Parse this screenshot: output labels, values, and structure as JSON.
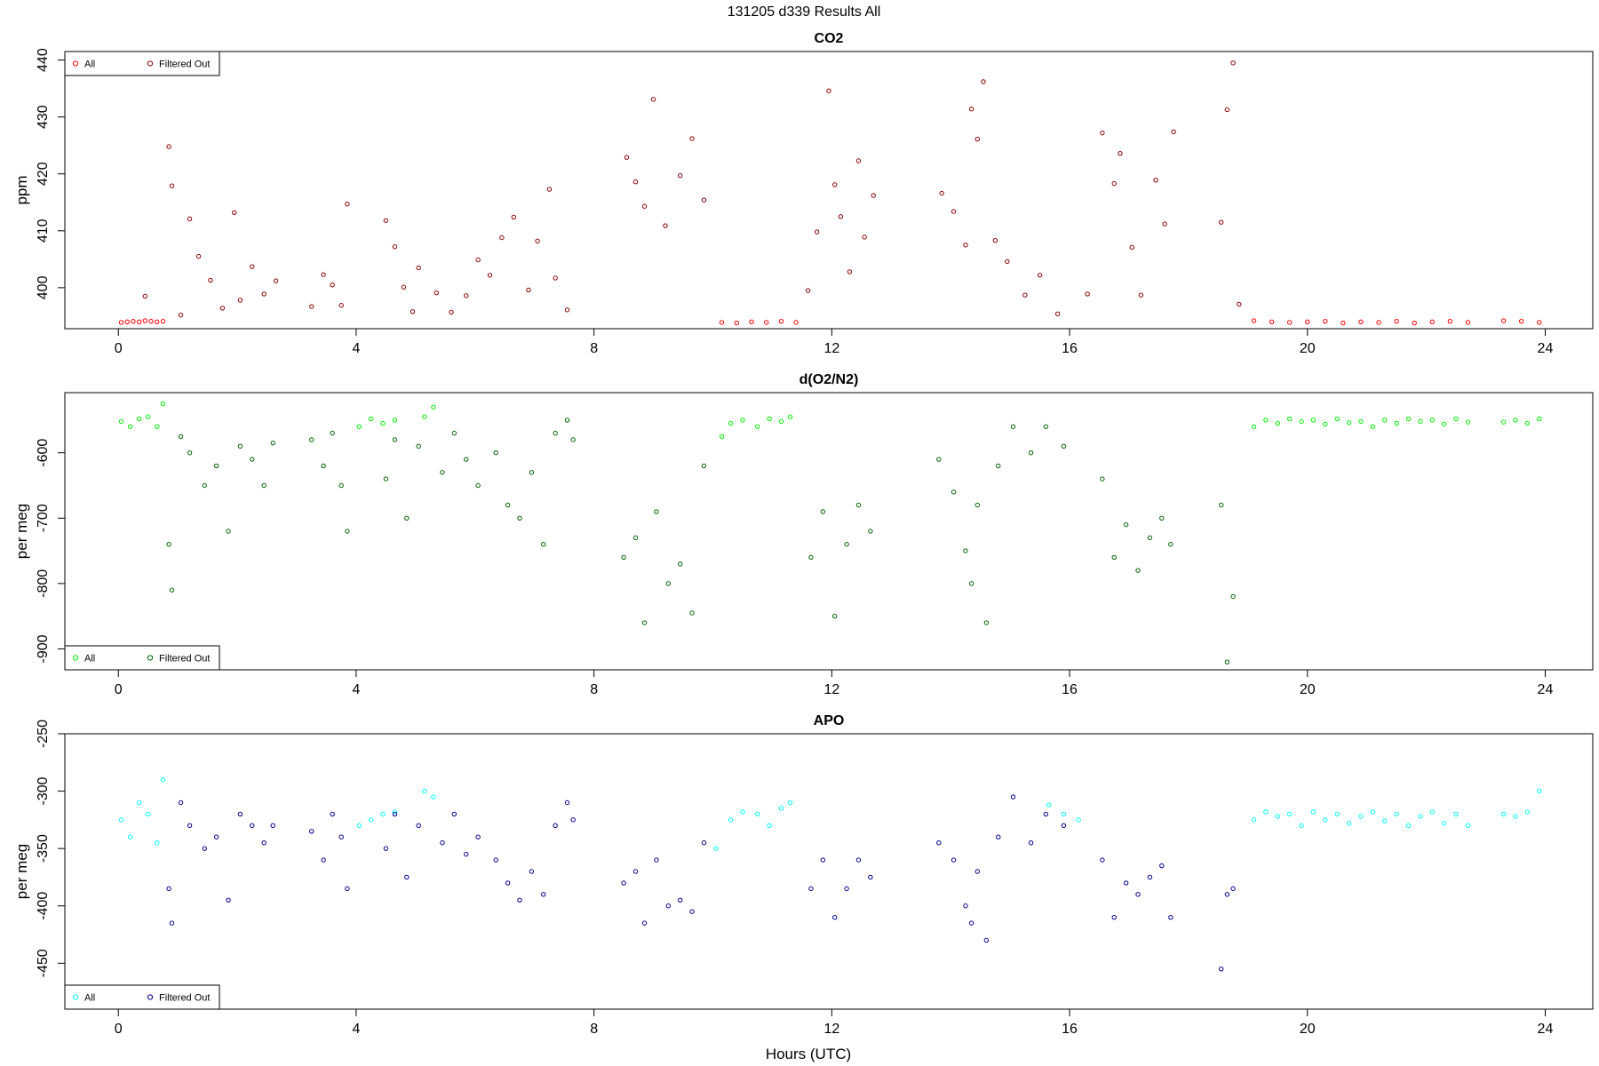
{
  "figure": {
    "title": "131205   d339   Results All",
    "xlabel": "Hours (UTC)"
  },
  "chart_data": [
    {
      "type": "scatter",
      "title": "CO2",
      "xlabel": "",
      "ylabel": "ppm",
      "xlim": [
        -0.9,
        24.8
      ],
      "ylim": [
        392.8,
        441.5
      ],
      "y_reversed": false,
      "xticks": [
        0,
        4,
        8,
        12,
        16,
        20,
        24
      ],
      "yticks": [
        400,
        410,
        420,
        430,
        440
      ],
      "legend": {
        "position": "top-left",
        "entries": [
          "All",
          "Filtered Out"
        ]
      },
      "colors": {
        "All": "#ff0000",
        "Filtered Out": "#8b0000"
      },
      "series": [
        {
          "name": "All",
          "x": [
            0.05,
            0.15,
            0.25,
            0.35,
            0.45,
            0.55,
            0.65,
            0.75,
            10.15,
            10.4,
            10.65,
            10.9,
            11.15,
            11.4,
            19.1,
            19.4,
            19.7,
            20,
            20.3,
            20.6,
            20.9,
            21.2,
            21.5,
            21.8,
            22.1,
            22.4,
            22.7,
            23.3,
            23.6,
            23.9
          ],
          "y": [
            393.9,
            394.0,
            394.1,
            394.0,
            394.2,
            394.1,
            394.0,
            394.1,
            393.9,
            393.8,
            394.0,
            393.9,
            394.1,
            393.9,
            394.2,
            394.0,
            393.9,
            394.0,
            394.1,
            393.8,
            394.0,
            393.9,
            394.1,
            393.8,
            394.0,
            394.1,
            393.9,
            394.2,
            394.1,
            393.9
          ]
        },
        {
          "name": "Filtered Out",
          "x": [
            0.45,
            0.85,
            0.9,
            1.05,
            1.2,
            1.35,
            1.55,
            1.75,
            1.95,
            2.05,
            2.25,
            2.45,
            2.65,
            3.25,
            3.45,
            3.6,
            3.75,
            3.85,
            4.5,
            4.65,
            4.8,
            4.95,
            5.05,
            5.35,
            5.6,
            5.85,
            6.05,
            6.25,
            6.45,
            6.65,
            6.9,
            7.05,
            7.25,
            7.35,
            7.55,
            8.55,
            8.7,
            8.85,
            9.0,
            9.2,
            9.45,
            9.65,
            9.85,
            11.6,
            11.75,
            11.95,
            12.05,
            12.15,
            12.3,
            12.45,
            12.55,
            12.7,
            13.85,
            14.05,
            14.25,
            14.35,
            14.45,
            14.55,
            14.75,
            14.95,
            15.25,
            15.5,
            15.8,
            16.3,
            16.55,
            16.75,
            16.85,
            17.05,
            17.2,
            17.45,
            17.6,
            17.75,
            18.55,
            18.65,
            18.75,
            18.85
          ],
          "y": [
            398.5,
            424.8,
            417.9,
            395.2,
            412.1,
            405.5,
            401.3,
            396.4,
            413.2,
            397.8,
            403.7,
            398.9,
            401.2,
            396.7,
            402.3,
            400.5,
            396.9,
            414.7,
            411.8,
            407.2,
            400.1,
            395.8,
            403.5,
            399.1,
            395.7,
            398.6,
            404.9,
            402.2,
            408.8,
            412.4,
            399.6,
            408.2,
            417.3,
            401.7,
            396.1,
            422.9,
            418.6,
            414.3,
            433.1,
            410.9,
            419.7,
            426.2,
            415.4,
            399.5,
            409.8,
            434.6,
            418.1,
            412.5,
            402.8,
            422.3,
            408.9,
            416.2,
            416.6,
            413.4,
            407.5,
            431.4,
            426.1,
            436.2,
            408.3,
            404.6,
            398.7,
            402.2,
            395.4,
            398.9,
            427.2,
            418.3,
            423.6,
            407.1,
            398.7,
            418.9,
            411.2,
            427.4,
            411.5,
            431.3,
            439.5,
            397.1
          ]
        }
      ]
    },
    {
      "type": "scatter",
      "title": "d(O2/N2)",
      "xlabel": "",
      "ylabel": "per meg",
      "xlim": [
        -0.9,
        24.8
      ],
      "ylim": [
        -932,
        -508
      ],
      "y_reversed": true,
      "xticks": [
        0,
        4,
        8,
        12,
        16,
        20,
        24
      ],
      "yticks": [
        -600,
        -700,
        -800,
        -900
      ],
      "legend": {
        "position": "bottom-left",
        "entries": [
          "All",
          "Filtered Out"
        ]
      },
      "colors": {
        "All": "#00ee00",
        "Filtered Out": "#006400"
      },
      "series": [
        {
          "name": "All",
          "x": [
            0.05,
            0.2,
            0.35,
            0.5,
            0.65,
            0.75,
            4.05,
            4.25,
            4.45,
            4.65,
            5.15,
            5.3,
            10.15,
            10.3,
            10.5,
            10.75,
            10.95,
            11.15,
            11.3,
            19.1,
            19.3,
            19.5,
            19.7,
            19.9,
            20.1,
            20.3,
            20.5,
            20.7,
            20.9,
            21.1,
            21.3,
            21.5,
            21.7,
            21.9,
            22.1,
            22.3,
            22.5,
            22.7,
            23.3,
            23.5,
            23.7,
            23.9
          ],
          "y": [
            -552,
            -560,
            -548,
            -545,
            -560,
            -525,
            -560,
            -548,
            -555,
            -550,
            -545,
            -530,
            -575,
            -555,
            -550,
            -560,
            -548,
            -552,
            -545,
            -560,
            -550,
            -555,
            -548,
            -552,
            -550,
            -556,
            -548,
            -554,
            -552,
            -560,
            -550,
            -555,
            -548,
            -552,
            -550,
            -556,
            -548,
            -553,
            -553,
            -550,
            -555,
            -548
          ]
        },
        {
          "name": "Filtered Out",
          "x": [
            0.85,
            0.9,
            1.05,
            1.2,
            1.45,
            1.65,
            1.85,
            2.05,
            2.25,
            2.45,
            2.6,
            3.25,
            3.45,
            3.6,
            3.75,
            3.85,
            4.5,
            4.65,
            4.85,
            5.05,
            5.45,
            5.65,
            5.85,
            6.05,
            6.35,
            6.55,
            6.75,
            6.95,
            7.15,
            7.35,
            7.55,
            7.65,
            8.5,
            8.7,
            8.85,
            9.05,
            9.25,
            9.45,
            9.65,
            9.85,
            11.65,
            11.85,
            12.05,
            12.25,
            12.45,
            12.65,
            13.8,
            14.05,
            14.25,
            14.35,
            14.45,
            14.6,
            14.8,
            15.05,
            15.35,
            15.6,
            15.9,
            16.55,
            16.75,
            16.95,
            17.15,
            17.35,
            17.55,
            17.7,
            18.55,
            18.65,
            18.75
          ],
          "y": [
            -740,
            -810,
            -575,
            -600,
            -650,
            -620,
            -720,
            -590,
            -610,
            -650,
            -585,
            -580,
            -620,
            -570,
            -650,
            -720,
            -640,
            -580,
            -700,
            -590,
            -630,
            -570,
            -610,
            -650,
            -600,
            -680,
            -700,
            -630,
            -740,
            -570,
            -550,
            -580,
            -760,
            -730,
            -860,
            -690,
            -800,
            -770,
            -845,
            -620,
            -760,
            -690,
            -850,
            -740,
            -680,
            -720,
            -610,
            -660,
            -750,
            -800,
            -680,
            -860,
            -620,
            -560,
            -600,
            -560,
            -590,
            -640,
            -760,
            -710,
            -780,
            -730,
            -700,
            -740,
            -680,
            -920,
            -820
          ]
        }
      ]
    },
    {
      "type": "scatter",
      "title": "APO",
      "xlabel": "Hours (UTC)",
      "ylabel": "per meg",
      "xlim": [
        -0.9,
        24.8
      ],
      "ylim": [
        -490,
        -250
      ],
      "y_reversed": false,
      "xticks": [
        0,
        4,
        8,
        12,
        16,
        20,
        24
      ],
      "yticks": [
        -250,
        -300,
        -350,
        -400,
        -450
      ],
      "legend": {
        "position": "bottom-left",
        "entries": [
          "All",
          "Filtered Out"
        ]
      },
      "colors": {
        "All": "#00ffff",
        "Filtered Out": "#00008b"
      },
      "series": [
        {
          "name": "All",
          "x": [
            0.05,
            0.2,
            0.35,
            0.5,
            0.65,
            0.75,
            4.05,
            4.25,
            4.45,
            4.65,
            5.15,
            5.3,
            10.05,
            10.3,
            10.5,
            10.75,
            10.95,
            11.15,
            11.3,
            15.65,
            15.9,
            16.15,
            19.1,
            19.3,
            19.5,
            19.7,
            19.9,
            20.1,
            20.3,
            20.5,
            20.7,
            20.9,
            21.1,
            21.3,
            21.5,
            21.7,
            21.9,
            22.1,
            22.3,
            22.5,
            22.7,
            23.3,
            23.5,
            23.7,
            23.9
          ],
          "y": [
            -325,
            -340,
            -310,
            -320,
            -345,
            -290,
            -330,
            -325,
            -320,
            -318,
            -300,
            -305,
            -350,
            -325,
            -318,
            -320,
            -330,
            -315,
            -310,
            -312,
            -320,
            -325,
            -325,
            -318,
            -322,
            -320,
            -330,
            -318,
            -325,
            -320,
            -328,
            -322,
            -318,
            -326,
            -320,
            -330,
            -322,
            -318,
            -328,
            -320,
            -330,
            -320,
            -322,
            -318,
            -300
          ]
        },
        {
          "name": "Filtered Out",
          "x": [
            0.85,
            0.9,
            1.05,
            1.2,
            1.45,
            1.65,
            1.85,
            2.05,
            2.25,
            2.45,
            2.6,
            3.25,
            3.45,
            3.6,
            3.75,
            3.85,
            4.5,
            4.65,
            4.85,
            5.05,
            5.45,
            5.65,
            5.85,
            6.05,
            6.35,
            6.55,
            6.75,
            6.95,
            7.15,
            7.35,
            7.55,
            7.65,
            8.5,
            8.7,
            8.85,
            9.05,
            9.25,
            9.45,
            9.65,
            9.85,
            11.65,
            11.85,
            12.05,
            12.25,
            12.45,
            12.65,
            13.8,
            14.05,
            14.25,
            14.35,
            14.45,
            14.6,
            14.8,
            15.05,
            15.35,
            15.6,
            15.9,
            16.55,
            16.75,
            16.95,
            17.15,
            17.35,
            17.55,
            17.7,
            18.55,
            18.65,
            18.75
          ],
          "y": [
            -385,
            -415,
            -310,
            -330,
            -350,
            -340,
            -395,
            -320,
            -330,
            -345,
            -330,
            -335,
            -360,
            -320,
            -340,
            -385,
            -350,
            -320,
            -375,
            -330,
            -345,
            -320,
            -355,
            -340,
            -360,
            -380,
            -395,
            -370,
            -390,
            -330,
            -310,
            -325,
            -380,
            -370,
            -415,
            -360,
            -400,
            -395,
            -405,
            -345,
            -385,
            -360,
            -410,
            -385,
            -360,
            -375,
            -345,
            -360,
            -400,
            -415,
            -370,
            -430,
            -340,
            -305,
            -345,
            -320,
            -330,
            -360,
            -410,
            -380,
            -390,
            -375,
            -365,
            -410,
            -455,
            -390,
            -385
          ]
        }
      ]
    }
  ]
}
